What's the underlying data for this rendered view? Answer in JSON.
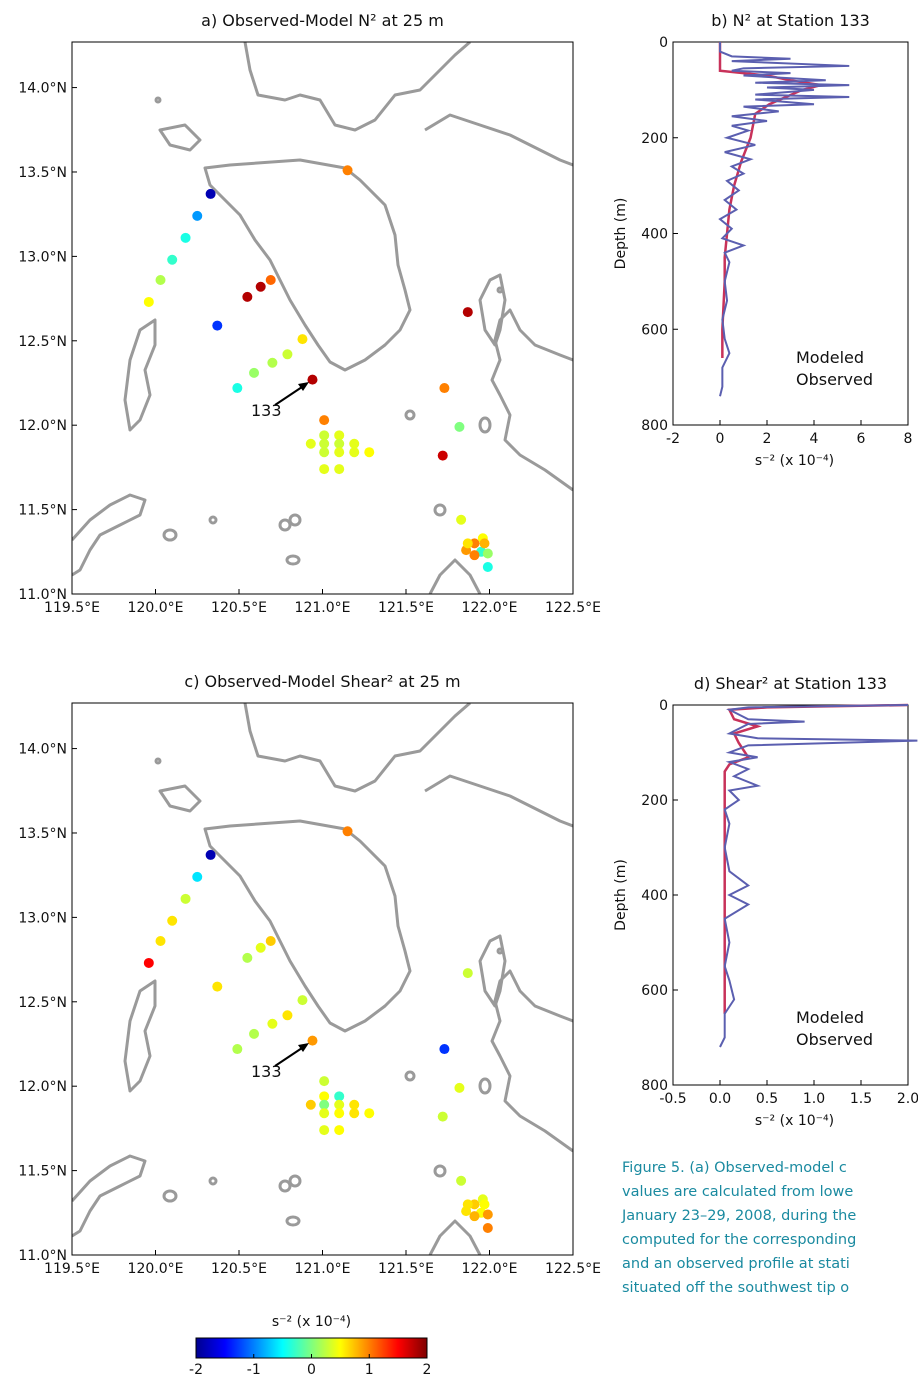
{
  "chart_data": [
    {
      "type": "scatter",
      "title": "a) Observed-Model N² at 25 m",
      "xlim": [
        119.5,
        122.5
      ],
      "ylim": [
        11.0,
        14.27
      ],
      "xticks": [
        {
          "value": 119.5,
          "label": "119.5°E"
        },
        {
          "value": 120.0,
          "label": "120.0°E"
        },
        {
          "value": 120.5,
          "label": "120.5°E"
        },
        {
          "value": 121.0,
          "label": "121.0°E"
        },
        {
          "value": 121.5,
          "label": "121.5°E"
        },
        {
          "value": 122.0,
          "label": "122.0°E"
        },
        {
          "value": 122.5,
          "label": "122.5°E"
        }
      ],
      "yticks": [
        {
          "value": 11.0,
          "label": "11.0°N"
        },
        {
          "value": 11.5,
          "label": "11.5°N"
        },
        {
          "value": 12.0,
          "label": "12.0°N"
        },
        {
          "value": 12.5,
          "label": "12.5°N"
        },
        {
          "value": 13.0,
          "label": "13.0°N"
        },
        {
          "value": 13.5,
          "label": "13.5°N"
        },
        {
          "value": 14.0,
          "label": "14.0°N"
        }
      ],
      "annotation": "133",
      "x": [
        120.33,
        120.25,
        120.18,
        120.1,
        120.03,
        119.96,
        120.37,
        120.55,
        120.63,
        120.69,
        120.49,
        120.59,
        120.7,
        120.79,
        120.88,
        120.94,
        121.15,
        121.01,
        121.01,
        121.1,
        120.93,
        121.01,
        121.1,
        121.19,
        121.01,
        121.1,
        121.19,
        121.28,
        121.01,
        121.1,
        121.87,
        121.73,
        121.82,
        121.72,
        121.83,
        121.96,
        121.91,
        121.86,
        121.95,
        121.99,
        121.91,
        121.99,
        121.97,
        121.87
      ],
      "y": [
        13.37,
        13.24,
        13.11,
        12.98,
        12.86,
        12.73,
        12.59,
        12.76,
        12.82,
        12.86,
        12.22,
        12.31,
        12.37,
        12.42,
        12.51,
        12.27,
        13.51,
        12.03,
        11.94,
        11.94,
        11.89,
        11.89,
        11.89,
        11.89,
        11.84,
        11.84,
        11.84,
        11.84,
        11.74,
        11.74,
        12.67,
        12.22,
        11.99,
        11.82,
        11.44,
        11.33,
        11.3,
        11.26,
        11.25,
        11.24,
        11.23,
        11.16,
        11.3,
        11.3
      ],
      "values": [
        -1.8,
        -0.9,
        -0.4,
        -0.3,
        0.2,
        0.5,
        -1.3,
        1.8,
        1.8,
        1.1,
        -0.4,
        0.1,
        0.2,
        0.3,
        0.6,
        1.8,
        1.0,
        1.0,
        0.3,
        0.4,
        0.4,
        0.3,
        0.3,
        0.4,
        0.3,
        0.4,
        0.4,
        0.5,
        0.4,
        0.4,
        1.8,
        1.0,
        0.0,
        1.7,
        0.4,
        0.5,
        1.0,
        0.9,
        -0.3,
        0.1,
        1.0,
        -0.4,
        0.8,
        0.6
      ]
    },
    {
      "type": "profile",
      "title": "b) N² at Station 133",
      "ylabel": "Depth (m)",
      "xlabel": "s⁻² (x 10⁻⁴)",
      "xlim": [
        -2,
        8
      ],
      "xticks": [
        -2,
        0,
        2,
        4,
        6,
        8
      ],
      "ylim": [
        0,
        800
      ],
      "yticks": [
        0,
        200,
        400,
        600,
        800
      ],
      "yaxis_reversed": true,
      "series": [
        {
          "name": "Modeled",
          "color": "#c8325a",
          "depth": [
            0,
            60,
            70,
            80,
            90,
            100,
            130,
            150,
            200,
            250,
            300,
            350,
            400,
            450,
            500,
            600,
            660
          ],
          "values": [
            0,
            0,
            2,
            3,
            4.3,
            3.5,
            2.1,
            1.5,
            1.3,
            0.9,
            0.6,
            0.4,
            0.3,
            0.2,
            0.2,
            0.1,
            0.1
          ]
        },
        {
          "name": "Observed",
          "color": "#5b5fb0",
          "depth": [
            0,
            20,
            30,
            35,
            40,
            50,
            55,
            60,
            65,
            70,
            80,
            85,
            90,
            95,
            100,
            110,
            115,
            120,
            130,
            135,
            145,
            155,
            165,
            175,
            185,
            200,
            215,
            230,
            245,
            260,
            275,
            290,
            310,
            330,
            350,
            370,
            390,
            410,
            425,
            440,
            460,
            500,
            540,
            580,
            620,
            650,
            680,
            720,
            740
          ],
          "values": [
            0,
            0,
            0.5,
            3,
            0.5,
            5.5,
            1,
            0.5,
            3,
            1,
            4.5,
            1.5,
            5.5,
            2,
            4,
            1.5,
            5.5,
            1.5,
            4,
            1,
            2.5,
            0.5,
            2,
            0.5,
            1.2,
            0.3,
            1.5,
            0.2,
            1.3,
            0.5,
            1,
            0.3,
            0.8,
            0.2,
            0.7,
            0,
            0.5,
            0.1,
            1,
            0.2,
            0.4,
            0.2,
            0.3,
            0.1,
            0.2,
            0.4,
            0.1,
            0.1,
            0
          ]
        }
      ]
    },
    {
      "type": "scatter",
      "title": "c) Observed-Model Shear² at 25 m",
      "xlim": [
        119.5,
        122.5
      ],
      "ylim": [
        11.0,
        14.27
      ],
      "xticks": [
        {
          "value": 119.5,
          "label": "119.5°E"
        },
        {
          "value": 120.0,
          "label": "120.0°E"
        },
        {
          "value": 120.5,
          "label": "120.5°E"
        },
        {
          "value": 121.0,
          "label": "121.0°E"
        },
        {
          "value": 121.5,
          "label": "121.5°E"
        },
        {
          "value": 122.0,
          "label": "122.0°E"
        },
        {
          "value": 122.5,
          "label": "122.5°E"
        }
      ],
      "yticks": [
        {
          "value": 11.0,
          "label": "11.0°N"
        },
        {
          "value": 11.5,
          "label": "11.5°N"
        },
        {
          "value": 12.0,
          "label": "12.0°N"
        },
        {
          "value": 12.5,
          "label": "12.5°N"
        },
        {
          "value": 13.0,
          "label": "13.0°N"
        },
        {
          "value": 13.5,
          "label": "13.5°N"
        },
        {
          "value": 14.0,
          "label": "14.0°N"
        }
      ],
      "annotation": "133",
      "x": [
        120.33,
        120.25,
        120.18,
        120.1,
        120.03,
        119.96,
        120.37,
        120.55,
        120.63,
        120.69,
        120.49,
        120.59,
        120.7,
        120.79,
        120.88,
        120.94,
        121.15,
        121.01,
        121.01,
        121.1,
        120.93,
        121.01,
        121.1,
        121.19,
        121.01,
        121.1,
        121.19,
        121.28,
        121.01,
        121.1,
        121.87,
        121.73,
        121.82,
        121.72,
        121.83,
        121.96,
        121.91,
        121.86,
        121.95,
        121.99,
        121.91,
        121.99,
        121.97,
        121.87
      ],
      "y": [
        13.37,
        13.24,
        13.11,
        12.98,
        12.86,
        12.73,
        12.59,
        12.76,
        12.82,
        12.86,
        12.22,
        12.31,
        12.37,
        12.42,
        12.51,
        12.27,
        13.51,
        12.03,
        11.94,
        11.94,
        11.89,
        11.89,
        11.89,
        11.89,
        11.84,
        11.84,
        11.84,
        11.84,
        11.74,
        11.74,
        12.67,
        12.22,
        11.99,
        11.82,
        11.44,
        11.33,
        11.3,
        11.26,
        11.25,
        11.24,
        11.23,
        11.16,
        11.3,
        11.3
      ],
      "values": [
        -1.8,
        -0.6,
        0.3,
        0.6,
        0.6,
        1.5,
        0.6,
        0.2,
        0.4,
        0.7,
        0.2,
        0.2,
        0.4,
        0.6,
        0.3,
        0.9,
        1.0,
        0.3,
        0.5,
        -0.3,
        0.7,
        0.0,
        0.4,
        0.6,
        0.4,
        0.5,
        0.6,
        0.5,
        0.4,
        0.5,
        0.3,
        -1.3,
        0.4,
        0.3,
        0.3,
        0.4,
        0.7,
        0.6,
        0.5,
        0.9,
        0.8,
        1.0,
        0.5,
        0.6
      ]
    },
    {
      "type": "profile",
      "title": "d) Shear² at Station 133",
      "ylabel": "Depth (m)",
      "xlabel": "s⁻² (x 10⁻⁴)",
      "xlim": [
        -0.5,
        2.0
      ],
      "xticks": [
        -0.5,
        {
          "value": 0.0,
          "label": "0.0"
        },
        0.5,
        {
          "value": 1.0,
          "label": "1.0"
        },
        1.5,
        {
          "value": 2.0,
          "label": "2.0"
        }
      ],
      "ylim": [
        0,
        800
      ],
      "yticks": [
        0,
        200,
        400,
        600,
        800
      ],
      "yaxis_reversed": true,
      "series": [
        {
          "name": "Modeled",
          "color": "#c8325a",
          "depth": [
            0,
            5,
            10,
            30,
            45,
            60,
            80,
            110,
            125,
            140,
            200,
            300,
            400,
            500,
            600,
            650
          ],
          "values": [
            2.0,
            0.5,
            0.1,
            0.15,
            0.4,
            0.15,
            0.2,
            0.3,
            0.1,
            0.05,
            0.05,
            0.05,
            0.05,
            0.05,
            0.05,
            0.05
          ]
        },
        {
          "name": "Observed",
          "color": "#5b5fb0",
          "depth": [
            0,
            5,
            10,
            20,
            30,
            35,
            40,
            60,
            70,
            75,
            85,
            100,
            110,
            120,
            135,
            150,
            170,
            180,
            200,
            220,
            250,
            300,
            350,
            380,
            400,
            420,
            450,
            500,
            550,
            580,
            620,
            650,
            700,
            720
          ],
          "values": [
            2.0,
            0.3,
            0.1,
            0.2,
            0.3,
            0.9,
            0.3,
            0.1,
            0.4,
            2.1,
            0.3,
            0.1,
            0.4,
            0.1,
            0.3,
            0.15,
            0.4,
            0.1,
            0.2,
            0.05,
            0.1,
            0.05,
            0.1,
            0.3,
            0.1,
            0.3,
            0.05,
            0.1,
            0.05,
            0.1,
            0.15,
            0.05,
            0.05,
            0
          ]
        }
      ]
    },
    {
      "type": "colorbar",
      "label": "s⁻² (x 10⁻⁴)",
      "lim": [
        -2,
        2
      ],
      "ticks": [
        -2,
        -1,
        0,
        1,
        2
      ]
    }
  ],
  "caption": {
    "lines": [
      "Figure 5. (a) Observed-model c",
      "values are calculated from lowe",
      "January 23–29, 2008, during the",
      "computed for the corresponding",
      "and an observed profile at stati",
      "situated off the southwest tip o"
    ]
  }
}
